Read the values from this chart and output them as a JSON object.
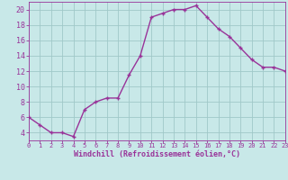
{
  "x": [
    0,
    1,
    2,
    3,
    4,
    5,
    6,
    7,
    8,
    9,
    10,
    11,
    12,
    13,
    14,
    15,
    16,
    17,
    18,
    19,
    20,
    21,
    22,
    23
  ],
  "y": [
    6,
    5,
    4,
    4,
    3.5,
    7,
    8,
    8.5,
    8.5,
    11.5,
    14,
    19,
    19.5,
    20,
    20,
    20.5,
    19,
    17.5,
    16.5,
    15,
    13.5,
    12.5,
    12.5,
    12
  ],
  "line_color": "#993399",
  "marker": "+",
  "marker_color": "#993399",
  "bg_color": "#c8e8e8",
  "grid_color": "#a0c8c8",
  "xlabel": "Windchill (Refroidissement éolien,°C)",
  "xlabel_color": "#993399",
  "tick_color": "#993399",
  "ylim": [
    3,
    21
  ],
  "xlim": [
    0,
    23
  ],
  "yticks": [
    4,
    6,
    8,
    10,
    12,
    14,
    16,
    18,
    20
  ],
  "xticks": [
    0,
    1,
    2,
    3,
    4,
    5,
    6,
    7,
    8,
    9,
    10,
    11,
    12,
    13,
    14,
    15,
    16,
    17,
    18,
    19,
    20,
    21,
    22,
    23
  ],
  "xlabel_fontsize": 6.0,
  "tick_fontsize_x": 5.0,
  "tick_fontsize_y": 6.0,
  "linewidth": 1.0,
  "markersize": 3.5
}
